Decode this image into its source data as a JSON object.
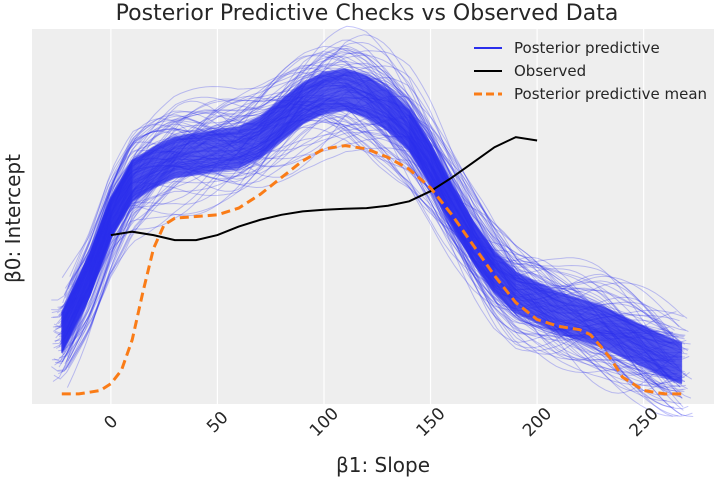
{
  "chart_data": {
    "type": "line",
    "title": "Posterior Predictive Checks vs Observed Data",
    "xlabel": "β1: Slope",
    "ylabel": "β0: Intercept",
    "xlim": [
      -37,
      283
    ],
    "ylim": [
      -0.03,
      1.08
    ],
    "x_ticks": [
      0,
      50,
      100,
      150,
      200,
      250
    ],
    "y_ticks_visible": false,
    "grid": true,
    "legend_position": "top-right",
    "background": "#eeeeee",
    "series": [
      {
        "name": "Posterior predictive",
        "color": "#2a2eec",
        "style": "band of many thin sampled curves",
        "points": [
          [
            -23,
            0.18
          ],
          [
            -10,
            0.35
          ],
          [
            0,
            0.52
          ],
          [
            10,
            0.63
          ],
          [
            20,
            0.67
          ],
          [
            30,
            0.7
          ],
          [
            40,
            0.71
          ],
          [
            50,
            0.72
          ],
          [
            60,
            0.73
          ],
          [
            70,
            0.76
          ],
          [
            80,
            0.81
          ],
          [
            90,
            0.86
          ],
          [
            100,
            0.89
          ],
          [
            110,
            0.9
          ],
          [
            120,
            0.88
          ],
          [
            130,
            0.84
          ],
          [
            140,
            0.78
          ],
          [
            150,
            0.68
          ],
          [
            160,
            0.56
          ],
          [
            170,
            0.45
          ],
          [
            180,
            0.36
          ],
          [
            190,
            0.3
          ],
          [
            200,
            0.27
          ],
          [
            210,
            0.24
          ],
          [
            220,
            0.22
          ],
          [
            230,
            0.2
          ],
          [
            240,
            0.17
          ],
          [
            250,
            0.14
          ],
          [
            260,
            0.11
          ],
          [
            268,
            0.09
          ]
        ]
      },
      {
        "name": "Observed",
        "color": "#000000",
        "style": "solid",
        "points": [
          [
            0,
            0.47
          ],
          [
            10,
            0.48
          ],
          [
            20,
            0.47
          ],
          [
            30,
            0.455
          ],
          [
            40,
            0.455
          ],
          [
            50,
            0.47
          ],
          [
            60,
            0.495
          ],
          [
            70,
            0.515
          ],
          [
            80,
            0.53
          ],
          [
            90,
            0.54
          ],
          [
            100,
            0.545
          ],
          [
            110,
            0.548
          ],
          [
            120,
            0.55
          ],
          [
            130,
            0.557
          ],
          [
            140,
            0.57
          ],
          [
            150,
            0.6
          ],
          [
            160,
            0.64
          ],
          [
            170,
            0.685
          ],
          [
            180,
            0.73
          ],
          [
            190,
            0.76
          ],
          [
            200,
            0.75
          ]
        ]
      },
      {
        "name": "Posterior predictive mean",
        "color": "#fa7c17",
        "style": "dashed",
        "points": [
          [
            -23,
            0.0
          ],
          [
            -15,
            0.0
          ],
          [
            -5,
            0.01
          ],
          [
            0,
            0.03
          ],
          [
            5,
            0.07
          ],
          [
            10,
            0.16
          ],
          [
            15,
            0.3
          ],
          [
            20,
            0.43
          ],
          [
            25,
            0.5
          ],
          [
            30,
            0.52
          ],
          [
            40,
            0.525
          ],
          [
            50,
            0.53
          ],
          [
            60,
            0.55
          ],
          [
            70,
            0.59
          ],
          [
            80,
            0.64
          ],
          [
            90,
            0.69
          ],
          [
            100,
            0.725
          ],
          [
            110,
            0.735
          ],
          [
            120,
            0.725
          ],
          [
            130,
            0.7
          ],
          [
            140,
            0.665
          ],
          [
            150,
            0.61
          ],
          [
            160,
            0.53
          ],
          [
            170,
            0.44
          ],
          [
            180,
            0.35
          ],
          [
            190,
            0.27
          ],
          [
            200,
            0.22
          ],
          [
            210,
            0.2
          ],
          [
            220,
            0.19
          ],
          [
            225,
            0.175
          ],
          [
            230,
            0.14
          ],
          [
            235,
            0.1
          ],
          [
            240,
            0.05
          ],
          [
            250,
            0.01
          ],
          [
            260,
            0.0
          ],
          [
            268,
            0.0
          ]
        ]
      }
    ]
  }
}
